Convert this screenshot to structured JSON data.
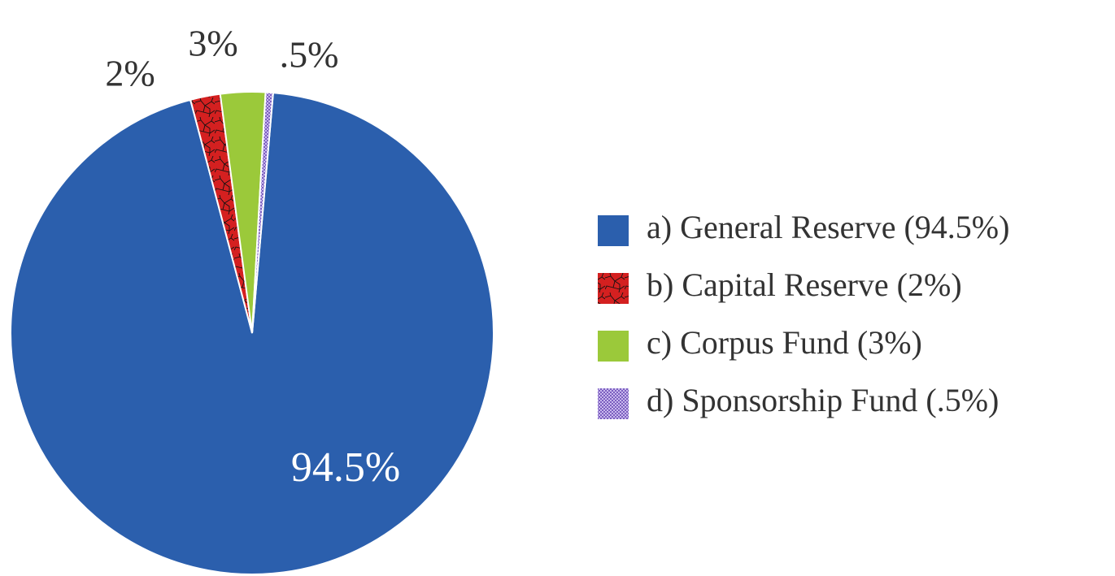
{
  "chart_data": {
    "type": "pie",
    "categories": [
      "a) General Reserve (94.5%)",
      "b) Capital Reserve (2%)",
      "c) Corpus Fund (3%)",
      "d) Sponsorship Fund (.5%)"
    ],
    "values": [
      94.5,
      2,
      3,
      0.5
    ],
    "value_labels": [
      "94.5%",
      "2%",
      "3%",
      ".5%"
    ],
    "colors": [
      "#2b5fad",
      "#d42020",
      "#9bc93a",
      "#a68fd4"
    ],
    "legend": "right"
  }
}
